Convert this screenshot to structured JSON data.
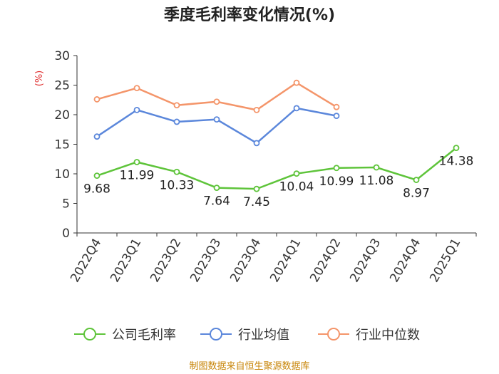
{
  "chart_data": {
    "type": "line",
    "title": "季度毛利率变化情况(%)",
    "ylabel": "(%)",
    "xlabel": "",
    "ylim": [
      0,
      30
    ],
    "yticks": [
      0,
      5,
      10,
      15,
      20,
      25,
      30
    ],
    "categories": [
      "2022Q4",
      "2023Q1",
      "2023Q2",
      "2023Q3",
      "2023Q4",
      "2024Q1",
      "2024Q2",
      "2024Q3",
      "2024Q4",
      "2025Q1"
    ],
    "grid": false,
    "legend_position": "bottom",
    "series": [
      {
        "name": "公司毛利率",
        "color": "#5ec43a",
        "values": [
          9.68,
          11.99,
          10.33,
          7.64,
          7.45,
          10.04,
          10.99,
          11.08,
          8.97,
          14.38
        ],
        "labels": [
          "9.68",
          "11.99",
          "10.33",
          "7.64",
          "7.45",
          "10.04",
          "10.99",
          "11.08",
          "8.97",
          "14.38"
        ]
      },
      {
        "name": "行业均值",
        "color": "#5b87db",
        "values": [
          16.3,
          20.8,
          18.8,
          19.2,
          15.2,
          21.1,
          19.8,
          null,
          null,
          null
        ]
      },
      {
        "name": "行业中位数",
        "color": "#f4956a",
        "values": [
          22.6,
          24.5,
          21.6,
          22.2,
          20.8,
          25.4,
          21.3,
          null,
          null,
          null
        ]
      }
    ],
    "source": "制图数据来自恒生聚源数据库"
  }
}
